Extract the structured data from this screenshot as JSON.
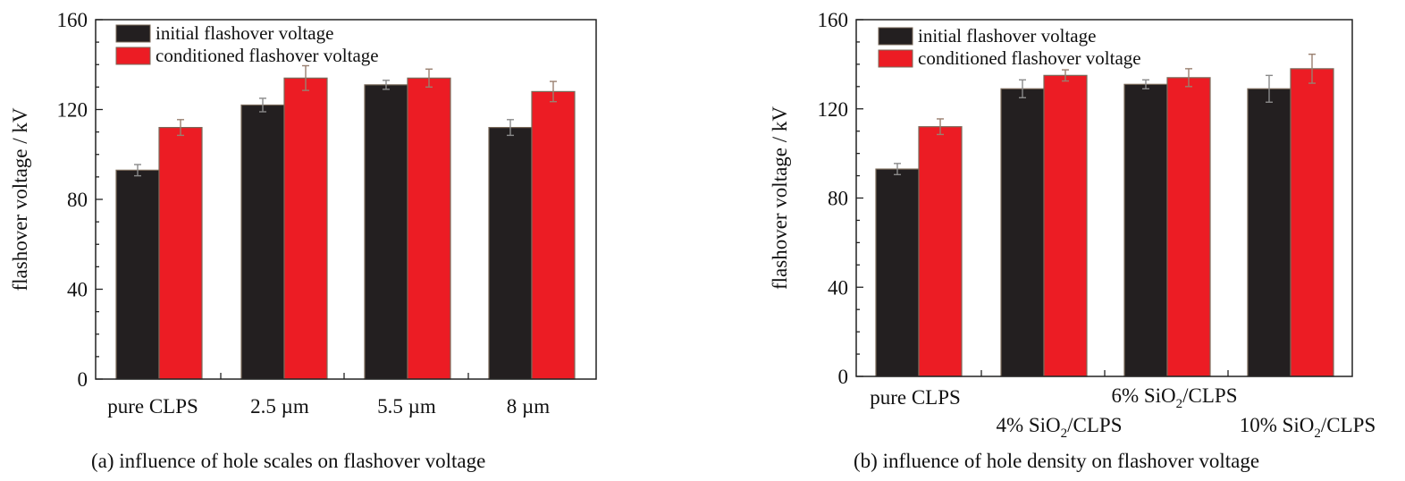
{
  "chart_data": [
    {
      "type": "bar",
      "caption": "(a) influence of hole scales on flashover voltage",
      "ylabel": "flashover voltage / kV",
      "xlabel": "",
      "ylim": [
        0,
        160
      ],
      "yticks": [
        0,
        40,
        80,
        120,
        160
      ],
      "categories": [
        {
          "text": "pure CLPS"
        },
        {
          "text": "2.5 µm"
        },
        {
          "text": "5.5 µm"
        },
        {
          "text": "8 µm"
        }
      ],
      "series": [
        {
          "name": "initial flashover voltage",
          "color": "#231f20",
          "values": [
            93,
            122,
            131,
            112
          ],
          "errors": [
            2.5,
            3,
            2,
            3.5
          ]
        },
        {
          "name": "conditioned flashover voltage",
          "color": "#ec1c24",
          "values": [
            112,
            134,
            134,
            128
          ],
          "errors": [
            3.5,
            5.5,
            4,
            4.5
          ]
        }
      ],
      "legend_position": "top-left",
      "grid": false
    },
    {
      "type": "bar",
      "caption": "(b) influence of hole density on flashover voltage",
      "ylabel": "flashover voltage / kV",
      "xlabel": "",
      "ylim": [
        0,
        160
      ],
      "yticks": [
        0,
        40,
        80,
        120,
        160
      ],
      "categories": [
        {
          "text": "pure CLPS"
        },
        {
          "pre": "4% SiO",
          "sub": "2",
          "post": "/CLPS"
        },
        {
          "pre": "6% SiO",
          "sub": "2",
          "post": "/CLPS"
        },
        {
          "pre": "10% SiO",
          "sub": "2",
          "post": "/CLPS"
        }
      ],
      "series": [
        {
          "name": "initial flashover voltage",
          "color": "#231f20",
          "values": [
            93,
            129,
            131,
            129
          ],
          "errors": [
            2.5,
            4,
            2,
            6
          ]
        },
        {
          "name": "conditioned flashover voltage",
          "color": "#ec1c24",
          "values": [
            112,
            135,
            134,
            138
          ],
          "errors": [
            3.5,
            2.5,
            4,
            6.5
          ]
        }
      ],
      "legend_position": "top-left",
      "grid": false
    }
  ]
}
